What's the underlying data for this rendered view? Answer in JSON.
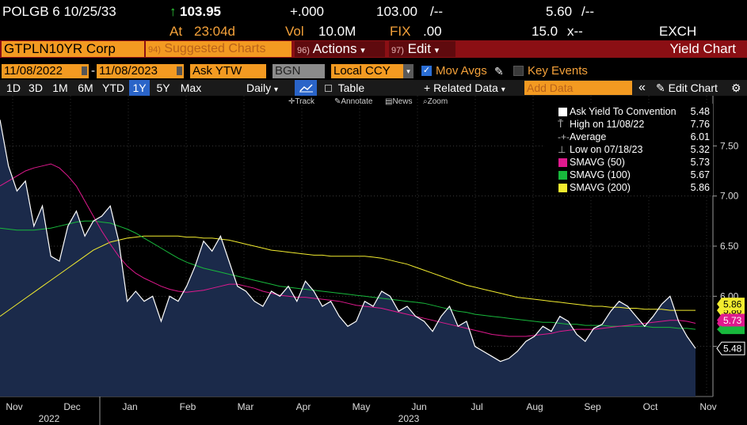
{
  "quote": {
    "ticker": "POLGB 6 10/25/33",
    "arrow": "↑",
    "price": "103.95",
    "change": "+.000",
    "bid": "103.00",
    "ask_sep": "/--",
    "yield": "5.60",
    "yield_sep": "/--",
    "at_label": "At",
    "time": "23:04d",
    "vol_label": "Vol",
    "volume": "10.0M",
    "fix_label": "FIX",
    "fix": ".00",
    "size": "15.0",
    "size_sep": "x--",
    "exch": "EXCH"
  },
  "command_bar": {
    "security": "GTPLN10YR Corp",
    "suggested_num": "94)",
    "suggested": "Suggested Charts",
    "actions_num": "96)",
    "actions": "Actions",
    "edit_num": "97)",
    "edit": "Edit",
    "title": "Yield Chart",
    "dropdown_caret": "▾"
  },
  "fields": {
    "start_date": "11/08/2022",
    "dash": "-",
    "end_date": "11/08/2023",
    "field": "Ask YTW",
    "source": "BGN",
    "currency": "Local CCY",
    "mov_avgs": "Mov Avgs",
    "key_events": "Key Events",
    "mov_avgs_checked": "✓"
  },
  "periods": [
    "1D",
    "3D",
    "1M",
    "6M",
    "YTD",
    "1Y",
    "5Y",
    "Max"
  ],
  "selected_period": "1Y",
  "toolbar": {
    "frequency": "Daily",
    "table": "Table",
    "related": "+ Related Data",
    "add_data_placeholder": "Add Data",
    "collapse": "«",
    "edit_chart": "Edit Chart",
    "settings": "⚙"
  },
  "tools": {
    "track": "Track",
    "annotate": "Annotate",
    "news": "News",
    "zoom": "Zoom"
  },
  "legend": [
    {
      "name": "Ask Yield To Convention",
      "value": "5.48",
      "color": "#ffffff",
      "kind": "swatch"
    },
    {
      "name": "High on 11/08/22",
      "value": "7.76",
      "color": "#bbbbbb",
      "kind": "high"
    },
    {
      "name": "Average",
      "value": "6.01",
      "color": "#bbbbbb",
      "kind": "avg"
    },
    {
      "name": "Low on 07/18/23",
      "value": "5.32",
      "color": "#bbbbbb",
      "kind": "low"
    },
    {
      "name": "SMAVG (50)",
      "value": "5.73",
      "color": "#e0198e",
      "kind": "swatch"
    },
    {
      "name": "SMAVG (100)",
      "value": "5.67",
      "color": "#18b83c",
      "kind": "swatch"
    },
    {
      "name": "SMAVG (200)",
      "value": "5.86",
      "color": "#f2ec2f",
      "kind": "swatch"
    }
  ],
  "chart_data": {
    "type": "area",
    "y_ticks": [
      "7.50",
      "7.00",
      "6.50",
      "6.00",
      "5.50"
    ],
    "ylim": [
      5.0,
      8.0
    ],
    "months": [
      "Nov",
      "Dec",
      "Jan",
      "Feb",
      "Mar",
      "Apr",
      "May",
      "Jun",
      "Jul",
      "Aug",
      "Sep",
      "Oct",
      "Nov"
    ],
    "years": [
      "2022",
      "2023"
    ],
    "last_value_labels": [
      {
        "value": "5.86",
        "color": "#f2ec2f"
      },
      {
        "value": "5.73",
        "color": "#e0198e"
      },
      {
        "value": "5.48",
        "color": "#ffffff"
      }
    ],
    "series": [
      {
        "name": "Ask Yield To Convention",
        "color": "#ffffff",
        "values": [
          7.76,
          7.3,
          7.05,
          7.15,
          6.7,
          6.9,
          6.4,
          6.35,
          6.7,
          6.85,
          6.6,
          6.75,
          6.8,
          6.9,
          6.55,
          5.95,
          6.05,
          5.95,
          6.0,
          5.75,
          6.0,
          5.95,
          6.1,
          6.3,
          6.55,
          6.45,
          6.6,
          6.35,
          6.1,
          6.05,
          5.95,
          5.9,
          6.05,
          6.0,
          6.1,
          5.95,
          6.15,
          6.05,
          5.9,
          5.95,
          5.8,
          5.7,
          5.75,
          5.95,
          5.9,
          6.05,
          6.0,
          5.85,
          5.9,
          5.8,
          5.75,
          5.65,
          5.8,
          5.9,
          5.7,
          5.75,
          5.5,
          5.45,
          5.4,
          5.35,
          5.38,
          5.45,
          5.55,
          5.6,
          5.7,
          5.65,
          5.8,
          5.75,
          5.62,
          5.55,
          5.68,
          5.72,
          5.85,
          5.95,
          5.9,
          5.8,
          5.7,
          5.8,
          5.92,
          6.0,
          5.75,
          5.6,
          5.48
        ]
      },
      {
        "name": "SMAVG (50)",
        "color": "#e0198e",
        "values": [
          7.1,
          7.15,
          7.2,
          7.25,
          7.28,
          7.3,
          7.32,
          7.28,
          7.2,
          7.1,
          6.95,
          6.8,
          6.65,
          6.52,
          6.4,
          6.3,
          6.23,
          6.18,
          6.14,
          6.1,
          6.07,
          6.05,
          6.04,
          6.05,
          6.06,
          6.08,
          6.1,
          6.12,
          6.12,
          6.1,
          6.08,
          6.05,
          6.03,
          6.01,
          6.0,
          5.99,
          5.99,
          5.98,
          5.97,
          5.96,
          5.95,
          5.93,
          5.91,
          5.9,
          5.89,
          5.88,
          5.86,
          5.84,
          5.82,
          5.8,
          5.78,
          5.76,
          5.74,
          5.72,
          5.7,
          5.68,
          5.66,
          5.64,
          5.62,
          5.61,
          5.6,
          5.6,
          5.6,
          5.61,
          5.62,
          5.63,
          5.65,
          5.66,
          5.67,
          5.67,
          5.67,
          5.68,
          5.69,
          5.7,
          5.71,
          5.72,
          5.73,
          5.74,
          5.75,
          5.76,
          5.76,
          5.75,
          5.73
        ]
      },
      {
        "name": "SMAVG (100)",
        "color": "#18b83c",
        "values": [
          6.68,
          6.67,
          6.66,
          6.66,
          6.66,
          6.67,
          6.68,
          6.7,
          6.72,
          6.74,
          6.75,
          6.75,
          6.74,
          6.73,
          6.7,
          6.67,
          6.63,
          6.58,
          6.53,
          6.48,
          6.43,
          6.38,
          6.34,
          6.31,
          6.28,
          6.26,
          6.24,
          6.22,
          6.2,
          6.18,
          6.16,
          6.14,
          6.12,
          6.1,
          6.09,
          6.08,
          6.07,
          6.06,
          6.05,
          6.04,
          6.03,
          6.02,
          6.01,
          6.0,
          5.99,
          5.98,
          5.97,
          5.96,
          5.95,
          5.94,
          5.93,
          5.91,
          5.89,
          5.87,
          5.85,
          5.84,
          5.82,
          5.81,
          5.8,
          5.79,
          5.78,
          5.77,
          5.76,
          5.75,
          5.74,
          5.74,
          5.73,
          5.72,
          5.72,
          5.71,
          5.71,
          5.71,
          5.7,
          5.7,
          5.7,
          5.7,
          5.7,
          5.69,
          5.69,
          5.69,
          5.68,
          5.68,
          5.67
        ]
      },
      {
        "name": "SMAVG (200)",
        "color": "#f2ec2f",
        "values": [
          5.8,
          5.86,
          5.92,
          5.98,
          6.04,
          6.1,
          6.16,
          6.22,
          6.28,
          6.34,
          6.4,
          6.46,
          6.5,
          6.54,
          6.56,
          6.58,
          6.59,
          6.6,
          6.6,
          6.6,
          6.6,
          6.6,
          6.59,
          6.59,
          6.58,
          6.58,
          6.57,
          6.56,
          6.54,
          6.52,
          6.5,
          6.48,
          6.46,
          6.45,
          6.44,
          6.43,
          6.42,
          6.41,
          6.41,
          6.4,
          6.4,
          6.4,
          6.4,
          6.4,
          6.39,
          6.38,
          6.36,
          6.34,
          6.32,
          6.29,
          6.26,
          6.23,
          6.2,
          6.17,
          6.14,
          6.11,
          6.09,
          6.07,
          6.05,
          6.03,
          6.01,
          5.99,
          5.98,
          5.97,
          5.96,
          5.95,
          5.94,
          5.93,
          5.92,
          5.91,
          5.9,
          5.9,
          5.89,
          5.89,
          5.88,
          5.88,
          5.87,
          5.87,
          5.87,
          5.86,
          5.86,
          5.86,
          5.86
        ]
      }
    ]
  }
}
